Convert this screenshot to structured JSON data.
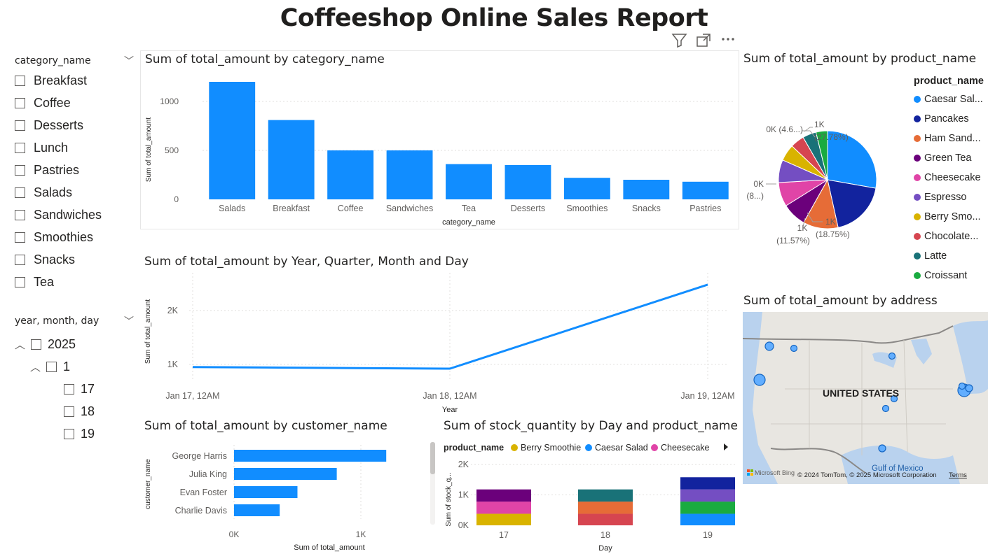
{
  "report_title": "Coffeeshop Online Sales Report",
  "toolbar": {
    "filter_icon": "filter-icon",
    "focus_icon": "focus-mode-icon",
    "more_icon": "more-options-icon"
  },
  "colors": {
    "accent": "#118dff",
    "text": "#252423",
    "grid": "#e1dfdd"
  },
  "slicer_category": {
    "header": "category_name",
    "items": [
      "Breakfast",
      "Coffee",
      "Desserts",
      "Lunch",
      "Pastries",
      "Salads",
      "Sandwiches",
      "Smoothies",
      "Snacks",
      "Tea"
    ]
  },
  "slicer_date": {
    "header": "year, month, day",
    "year": "2025",
    "month": "1",
    "days": [
      "17",
      "18",
      "19"
    ]
  },
  "chart_data": [
    {
      "id": "category",
      "type": "bar",
      "title": "Sum of total_amount by category_name",
      "xlabel": "category_name",
      "ylabel": "Sum of total_amount",
      "categories": [
        "Salads",
        "Breakfast",
        "Coffee",
        "Sandwiches",
        "Tea",
        "Desserts",
        "Smoothies",
        "Snacks",
        "Pastries"
      ],
      "values": [
        1200,
        810,
        500,
        500,
        360,
        350,
        220,
        200,
        180
      ],
      "yticks": [
        "0",
        "500",
        "1000"
      ],
      "ylim": [
        0,
        1300
      ],
      "grid": true
    },
    {
      "id": "trend",
      "type": "line",
      "title": "Sum of total_amount by Year, Quarter, Month and Day",
      "xlabel": "Year",
      "ylabel": "Sum of total_amount",
      "x": [
        "Jan 17, 12AM",
        "Jan 18, 12AM",
        "Jan 19, 12AM"
      ],
      "values": [
        950,
        920,
        2480
      ],
      "yticks": [
        "1K",
        "2K"
      ],
      "ylim": [
        700,
        2700
      ],
      "grid": true
    },
    {
      "id": "customer",
      "type": "bar",
      "orientation": "horizontal",
      "title": "Sum of total_amount by customer_name",
      "xlabel": "Sum of total_amount",
      "ylabel": "customer_name",
      "categories": [
        "George Harris",
        "Julia King",
        "Evan Foster",
        "Charlie Davis"
      ],
      "values": [
        1200,
        810,
        500,
        360
      ],
      "xticks": [
        "0K",
        "1K"
      ],
      "xlim": [
        0,
        1400
      ],
      "grid": true
    },
    {
      "id": "product_pie",
      "type": "pie",
      "title": "Sum of total_amount by product_name",
      "legend_title": "product_name",
      "labels": [
        "Caesar Sal...",
        "Pancakes",
        "Ham Sand...",
        "Green Tea",
        "Cheesecake",
        "Espresso",
        "Berry Smo...",
        "Chocolate...",
        "Latte",
        "Croissant"
      ],
      "values": [
        27.78,
        18.75,
        11.57,
        8.0,
        8.0,
        7.5,
        5.5,
        4.6,
        4.5,
        3.8
      ],
      "colors": [
        "#118dff",
        "#12239e",
        "#e66c37",
        "#6b007b",
        "#e044a7",
        "#744ec2",
        "#d9b300",
        "#d64550",
        "#197278",
        "#1aab40"
      ],
      "data_labels": [
        {
          "value": "1K",
          "pct": "(27.78%)"
        },
        {
          "value": "1K",
          "pct": "(18.75%)"
        },
        {
          "value": "1K",
          "pct": "(11.57%)"
        },
        {
          "value": "0K",
          "pct": "(8...)"
        },
        {
          "value": "0K (4.6...)",
          "pct": ""
        }
      ],
      "legend_placement": "right"
    },
    {
      "id": "stock",
      "type": "bar",
      "stacked": true,
      "title": "Sum of stock_quantity by Day and product_name",
      "xlabel": "Day",
      "ylabel": "Sum of stock_q...",
      "legend_title": "product_name",
      "legend_entries": [
        {
          "name": "Berry Smoothie",
          "color": "#d9b300"
        },
        {
          "name": "Caesar Salad",
          "color": "#118dff"
        },
        {
          "name": "Cheesecake",
          "color": "#e044a7"
        }
      ],
      "categories": [
        "17",
        "18",
        "19"
      ],
      "yticks": [
        "0K",
        "1K",
        "2K"
      ],
      "ylim": [
        0,
        2000
      ],
      "stacks": [
        [
          {
            "value": 380,
            "color": "#d9b300"
          },
          {
            "value": 400,
            "color": "#e044a7"
          },
          {
            "value": 400,
            "color": "#6b007b"
          }
        ],
        [
          {
            "value": 380,
            "color": "#d64550"
          },
          {
            "value": 400,
            "color": "#e66c37"
          },
          {
            "value": 400,
            "color": "#197278"
          }
        ],
        [
          {
            "value": 380,
            "color": "#118dff"
          },
          {
            "value": 400,
            "color": "#1aab40"
          },
          {
            "value": 400,
            "color": "#744ec2"
          },
          {
            "value": 400,
            "color": "#12239e"
          }
        ]
      ]
    }
  ],
  "map": {
    "title": "Sum of total_amount by address",
    "country_label": "UNITED STATES",
    "gulf_label": "Gulf of Mexico",
    "bing_label": "Microsoft Bing",
    "copyright": "© 2024 TomTom, © 2025 Microsoft Corporation",
    "terms": "Terms"
  }
}
